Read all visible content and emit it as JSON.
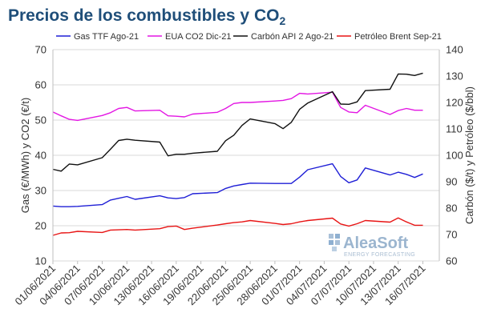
{
  "chart_data": {
    "type": "line",
    "title": "Precios de los combustibles y CO",
    "title_subscript": "2",
    "ylabel_left": "Gas (€/MWh) y CO2 (€/t)",
    "ylabel_right": "Carbón ($/t) y Petróleo ($/bbl)",
    "ylim_left": [
      10,
      70
    ],
    "ylim_right": [
      60,
      140
    ],
    "yticks_left": [
      10,
      20,
      30,
      40,
      50,
      60,
      70
    ],
    "yticks_right": [
      60,
      70,
      80,
      90,
      100,
      110,
      120,
      130,
      140
    ],
    "xlim": [
      "2021-06-01",
      "2021-07-18"
    ],
    "xticks": [
      "01/06/2021",
      "04/06/2021",
      "07/06/2021",
      "10/06/2021",
      "13/06/2021",
      "16/06/2021",
      "19/06/2021",
      "22/06/2021",
      "25/06/2021",
      "28/06/2021",
      "01/07/2021",
      "04/07/2021",
      "07/07/2021",
      "10/07/2021",
      "13/07/2021",
      "16/07/2021"
    ],
    "grid": true,
    "legend_position": "top",
    "colors": {
      "title": "#1f4e79",
      "logo": "#9bb5cf"
    },
    "series": [
      {
        "name": "Gas TTF Ago-21",
        "color": "#1f1fd6",
        "axis": "left",
        "x": [
          "2021-06-01",
          "2021-06-02",
          "2021-06-03",
          "2021-06-04",
          "2021-06-07",
          "2021-06-08",
          "2021-06-09",
          "2021-06-10",
          "2021-06-11",
          "2021-06-14",
          "2021-06-15",
          "2021-06-16",
          "2021-06-17",
          "2021-06-18",
          "2021-06-21",
          "2021-06-22",
          "2021-06-23",
          "2021-06-24",
          "2021-06-25",
          "2021-06-28",
          "2021-06-29",
          "2021-06-30",
          "2021-07-01",
          "2021-07-02",
          "2021-07-05",
          "2021-07-06",
          "2021-07-07",
          "2021-07-08",
          "2021-07-09",
          "2021-07-12",
          "2021-07-13",
          "2021-07-14",
          "2021-07-15",
          "2021-07-16"
        ],
        "values": [
          25.6,
          25.4,
          25.4,
          25.5,
          26.0,
          27.3,
          27.8,
          28.3,
          27.5,
          28.5,
          27.9,
          27.7,
          28.0,
          29.1,
          29.4,
          30.6,
          31.3,
          31.7,
          32.1,
          32.0,
          32.0,
          32.0,
          33.8,
          35.9,
          37.6,
          34.0,
          32.2,
          33.0,
          36.4,
          34.4,
          35.2,
          34.6,
          33.7,
          34.7
        ]
      },
      {
        "name": "EUA CO2 Dic-21",
        "color": "#e316e3",
        "axis": "left",
        "x": [
          "2021-06-01",
          "2021-06-02",
          "2021-06-03",
          "2021-06-04",
          "2021-06-07",
          "2021-06-08",
          "2021-06-09",
          "2021-06-10",
          "2021-06-11",
          "2021-06-14",
          "2021-06-15",
          "2021-06-16",
          "2021-06-17",
          "2021-06-18",
          "2021-06-21",
          "2021-06-22",
          "2021-06-23",
          "2021-06-24",
          "2021-06-25",
          "2021-06-28",
          "2021-06-29",
          "2021-06-30",
          "2021-07-01",
          "2021-07-02",
          "2021-07-05",
          "2021-07-06",
          "2021-07-07",
          "2021-07-08",
          "2021-07-09",
          "2021-07-12",
          "2021-07-13",
          "2021-07-14",
          "2021-07-15",
          "2021-07-16"
        ],
        "values": [
          52.3,
          51.2,
          50.2,
          49.9,
          51.3,
          52.1,
          53.3,
          53.6,
          52.6,
          52.8,
          51.2,
          51.1,
          50.9,
          51.7,
          52.2,
          53.3,
          54.7,
          55.0,
          55.0,
          55.4,
          55.6,
          56.1,
          57.6,
          57.4,
          57.9,
          53.6,
          52.3,
          52.1,
          54.2,
          51.6,
          52.7,
          53.3,
          52.8,
          52.8
        ]
      },
      {
        "name": "Carbón API 2 Ago-21",
        "color": "#111111",
        "axis": "right",
        "x": [
          "2021-06-01",
          "2021-06-02",
          "2021-06-03",
          "2021-06-04",
          "2021-06-07",
          "2021-06-08",
          "2021-06-09",
          "2021-06-10",
          "2021-06-11",
          "2021-06-14",
          "2021-06-15",
          "2021-06-16",
          "2021-06-17",
          "2021-06-18",
          "2021-06-21",
          "2021-06-22",
          "2021-06-23",
          "2021-06-24",
          "2021-06-25",
          "2021-06-28",
          "2021-06-29",
          "2021-06-30",
          "2021-07-01",
          "2021-07-02",
          "2021-07-05",
          "2021-07-06",
          "2021-07-07",
          "2021-07-08",
          "2021-07-09",
          "2021-07-12",
          "2021-07-13",
          "2021-07-14",
          "2021-07-15",
          "2021-07-16"
        ],
        "values": [
          94.7,
          94.0,
          96.7,
          96.4,
          99.1,
          102.3,
          105.6,
          106.1,
          105.7,
          105.0,
          99.8,
          100.4,
          100.4,
          100.8,
          101.5,
          105.5,
          107.6,
          111.3,
          113.8,
          112.0,
          110.1,
          112.5,
          117.4,
          119.8,
          124.1,
          119.4,
          119.3,
          120.2,
          124.5,
          125.0,
          130.8,
          130.7,
          130.2,
          131.1
        ]
      },
      {
        "name": "Petróleo Brent Sep-21",
        "color": "#e81414",
        "axis": "right",
        "x": [
          "2021-06-01",
          "2021-06-02",
          "2021-06-03",
          "2021-06-04",
          "2021-06-07",
          "2021-06-08",
          "2021-06-09",
          "2021-06-10",
          "2021-06-11",
          "2021-06-14",
          "2021-06-15",
          "2021-06-16",
          "2021-06-17",
          "2021-06-18",
          "2021-06-21",
          "2021-06-22",
          "2021-06-23",
          "2021-06-24",
          "2021-06-25",
          "2021-06-28",
          "2021-06-29",
          "2021-06-30",
          "2021-07-01",
          "2021-07-02",
          "2021-07-05",
          "2021-07-06",
          "2021-07-07",
          "2021-07-08",
          "2021-07-09",
          "2021-07-12",
          "2021-07-13",
          "2021-07-14",
          "2021-07-15",
          "2021-07-16"
        ],
        "values": [
          69.7,
          70.6,
          70.7,
          71.2,
          70.8,
          71.7,
          71.8,
          71.9,
          71.7,
          72.2,
          73.0,
          73.2,
          71.9,
          72.4,
          73.6,
          74.1,
          74.5,
          74.8,
          75.3,
          74.2,
          73.8,
          74.1,
          74.8,
          75.3,
          76.2,
          74.0,
          73.2,
          74.1,
          75.3,
          74.7,
          76.3,
          74.8,
          73.5,
          73.5
        ]
      }
    ]
  },
  "watermark": {
    "brand": "AleaSoft",
    "tagline": "ENERGY FORECASTING"
  }
}
